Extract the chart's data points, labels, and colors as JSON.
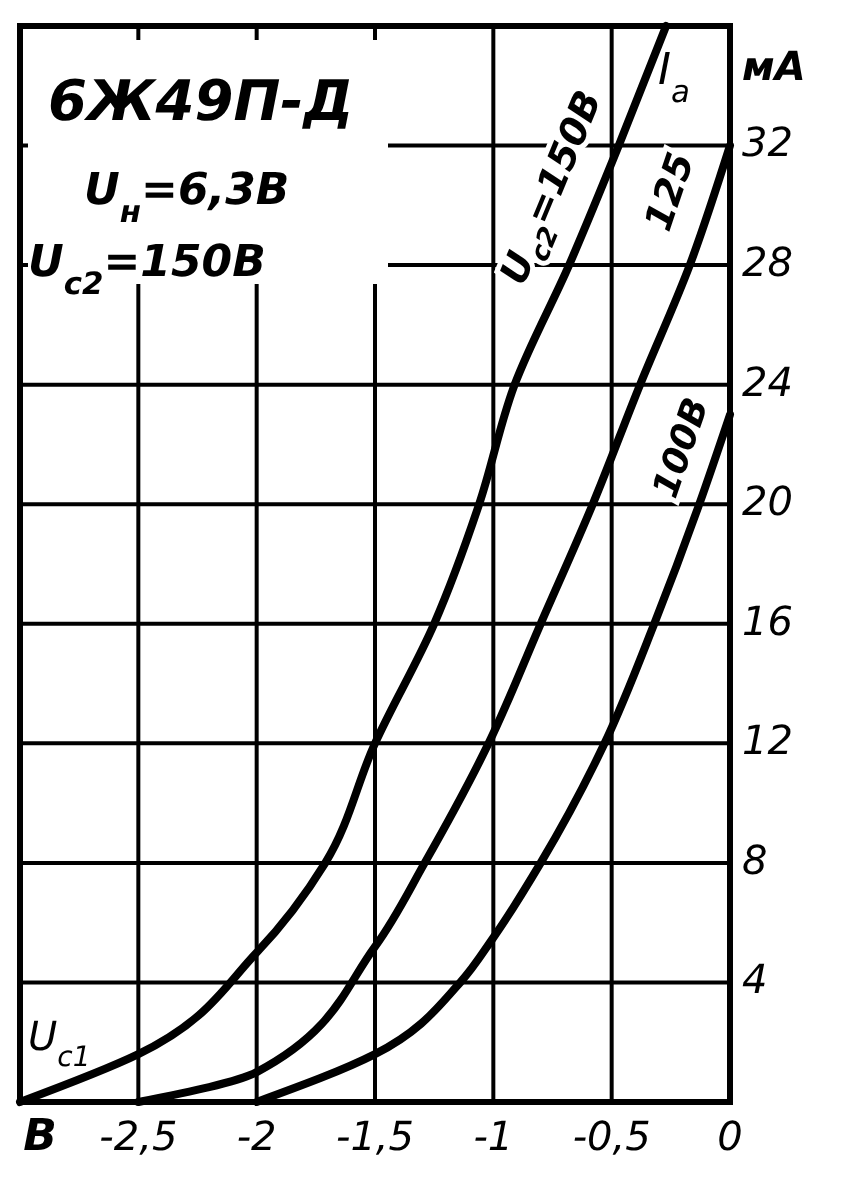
{
  "chart_data": {
    "type": "line",
    "title": "6Ж49П-Д",
    "subtitle": "U$_{н}$=6,3В",
    "xlabel": "U$_{c1}$",
    "ylabel": "I$_{a}$",
    "annotations": [
      "U$_{c2}$=150В",
      "мА",
      "В"
    ],
    "xlim": [
      -3,
      0
    ],
    "xticks": [
      {
        "value": -2.5,
        "label": "-2,5"
      },
      -2,
      {
        "value": -1.5,
        "label": "-1,5"
      },
      -1,
      {
        "value": -0.5,
        "label": "-0,5"
      },
      0
    ],
    "ylim": [
      0,
      36
    ],
    "yticks": [
      4,
      8,
      12,
      16,
      20,
      24,
      28,
      32
    ],
    "grid": true,
    "line_style": "solid",
    "marker": "none",
    "series": [
      {
        "name": "U$_{c2}$=150В",
        "color": "#000000",
        "x": [
          -3,
          -2.5,
          -2,
          -1.71,
          -1.5,
          -1.25,
          -1.06,
          -0.91,
          -0.68,
          -0.47,
          -0.27
        ],
        "values": [
          0,
          1.6,
          5,
          8,
          12,
          16,
          20,
          24,
          28,
          32,
          36
        ]
      },
      {
        "name": "125",
        "color": "#000000",
        "x": [
          -2.5,
          -2,
          -1.5,
          -1.29,
          -1.02,
          -0.8,
          -0.58,
          -0.38,
          -0.17,
          0
        ],
        "values": [
          0,
          1,
          5.2,
          8,
          12,
          16,
          20,
          24,
          28,
          32
        ]
      },
      {
        "name": "100В",
        "color": "#000000",
        "x": [
          -2,
          -1.5,
          -1.14,
          -1,
          -0.8,
          -0.53,
          -0.32,
          -0.13,
          0
        ],
        "values": [
          0,
          1.6,
          4,
          5.5,
          8,
          12,
          16,
          20,
          23
        ]
      }
    ]
  }
}
